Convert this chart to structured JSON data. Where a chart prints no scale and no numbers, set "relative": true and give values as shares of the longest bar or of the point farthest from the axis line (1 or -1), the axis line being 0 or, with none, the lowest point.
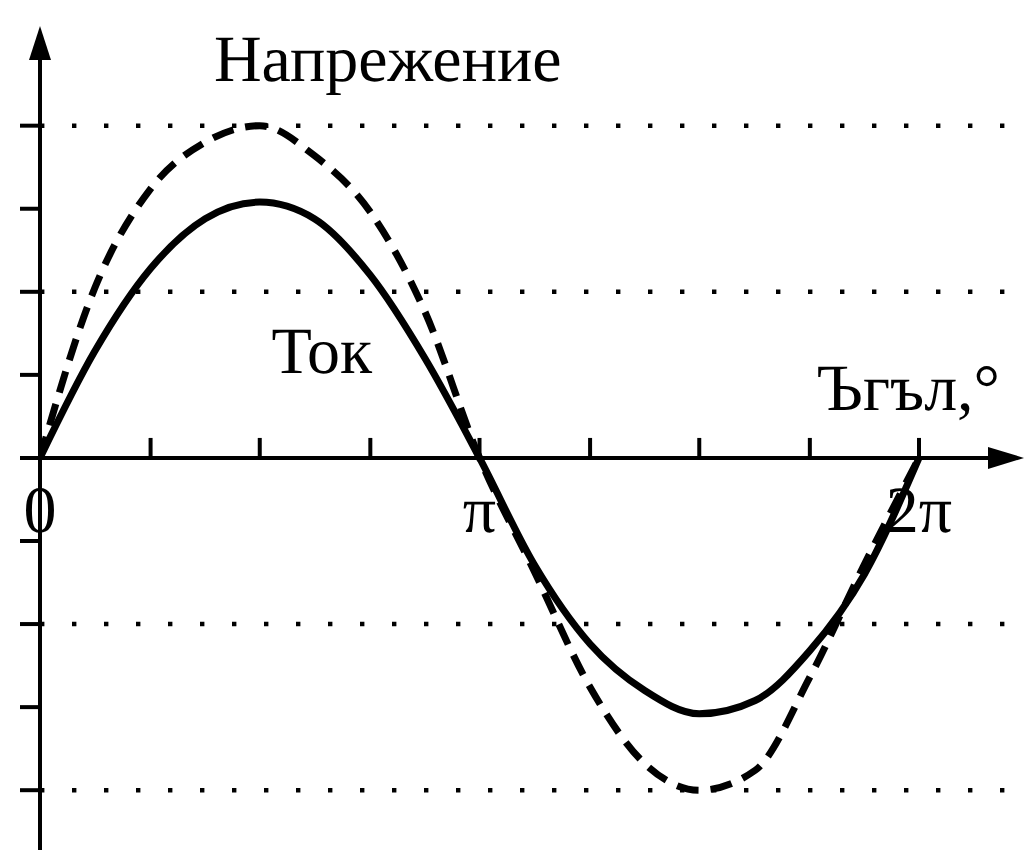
{
  "chart_data": {
    "type": "line",
    "xlabel": "Ъгъл,°",
    "x": [
      0,
      0.39,
      0.79,
      1.18,
      1.57,
      1.96,
      2.36,
      2.75,
      3.14,
      3.53,
      3.93,
      4.32,
      4.71,
      5.11,
      5.5,
      5.89,
      6.28
    ],
    "series": [
      {
        "name": "Напрежение",
        "color": "#000000",
        "line_style": "dashed",
        "values": [
          0,
          0.51,
          0.81,
          0.95,
          1,
          0.91,
          0.74,
          0.44,
          0,
          -0.34,
          -0.69,
          -0.92,
          -1,
          -0.94,
          -0.66,
          -0.32,
          0
        ]
      },
      {
        "name": "Ток",
        "color": "#000000",
        "line_style": "solid",
        "values": [
          0,
          0.32,
          0.57,
          0.72,
          0.77,
          0.72,
          0.55,
          0.3,
          0,
          -0.32,
          -0.56,
          -0.7,
          -0.77,
          -0.73,
          -0.58,
          -0.35,
          0
        ]
      }
    ],
    "xlim": [
      0,
      7.03
    ],
    "xticks": [
      0,
      {
        "value": 0.79,
        "label": null
      },
      {
        "value": 1.57,
        "label": null
      },
      {
        "value": 2.36,
        "label": null
      },
      {
        "value": 3.14,
        "label": "π"
      },
      {
        "value": 3.93,
        "label": null
      },
      {
        "value": 4.71,
        "label": null
      },
      {
        "value": 5.5,
        "label": null
      },
      {
        "value": 6.28,
        "label": "2π"
      }
    ],
    "relative": true,
    "ref_lines": [
      {
        "axis": "y",
        "value": 1,
        "color": "#000000",
        "line_style": "dotted"
      },
      {
        "axis": "y",
        "value": 0.5,
        "color": "#000000",
        "line_style": "dotted"
      },
      {
        "axis": "y",
        "value": -0.5,
        "color": "#000000",
        "line_style": "dotted"
      },
      {
        "axis": "y",
        "value": -1,
        "color": "#000000",
        "line_style": "dotted"
      }
    ]
  }
}
